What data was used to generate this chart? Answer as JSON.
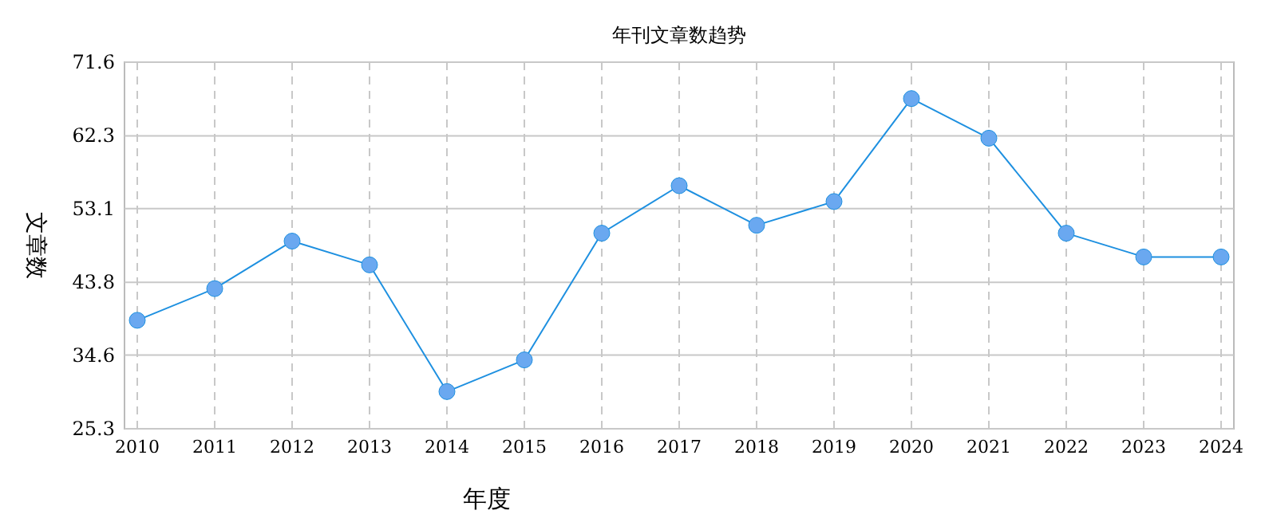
{
  "chart_data": {
    "type": "line",
    "title": "年刊文章数趋势",
    "xlabel": "年度",
    "ylabel": "文章数",
    "categories": [
      "2010",
      "2011",
      "2012",
      "2013",
      "2014",
      "2015",
      "2016",
      "2017",
      "2018",
      "2019",
      "2020",
      "2021",
      "2022",
      "2023",
      "2024"
    ],
    "series": [
      {
        "color": "#1e90e0",
        "values": [
          39,
          43,
          49,
          46,
          30,
          34,
          50,
          56,
          51,
          54,
          67,
          62,
          50,
          47,
          47
        ]
      }
    ],
    "ylim": [
      25.3,
      71.6
    ],
    "yticks": [
      25.3,
      34.6,
      43.8,
      53.1,
      62.3,
      71.6
    ],
    "grid": true,
    "marker": "circle",
    "line_style": "solid"
  }
}
